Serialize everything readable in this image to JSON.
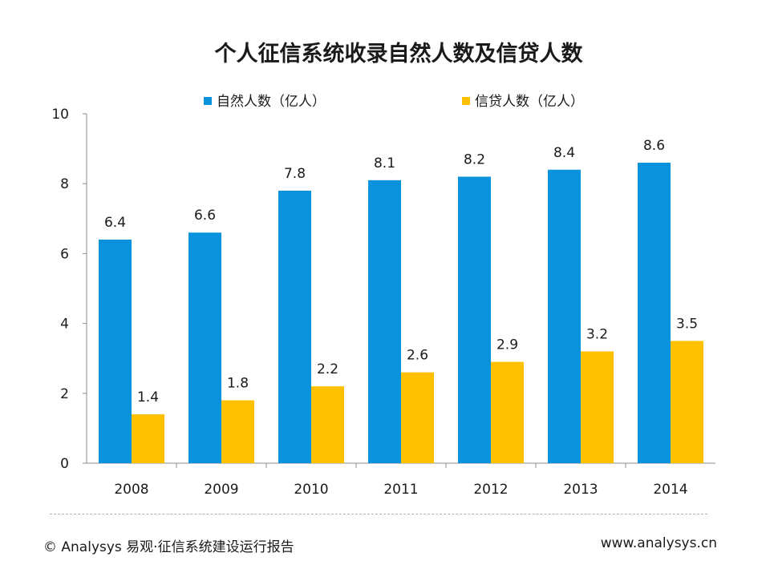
{
  "colors": {
    "series1": "#0a93dc",
    "series2": "#ffc000"
  },
  "chart_data": {
    "type": "bar",
    "title": "个人征信系统收录自然人数及信贷人数",
    "categories": [
      "2008",
      "2009",
      "2010",
      "2011",
      "2012",
      "2013",
      "2014"
    ],
    "series": [
      {
        "name": "自然人数（亿人）",
        "values": [
          6.4,
          6.6,
          7.8,
          8.1,
          8.2,
          8.4,
          8.6
        ],
        "labels": [
          "6.4",
          "6.6",
          "7.8",
          "8.1",
          "8.2",
          "8.4",
          "8.6"
        ]
      },
      {
        "name": "信贷人数（亿人）",
        "values": [
          1.4,
          1.8,
          2.2,
          2.6,
          2.9,
          3.2,
          3.5
        ],
        "labels": [
          "1.4",
          "1.8",
          "2.2",
          "2.6",
          "2.9",
          "3.2",
          "3.5"
        ]
      }
    ],
    "ylim": [
      0,
      10
    ],
    "yticks": [
      "0",
      "2",
      "4",
      "6",
      "8",
      "10"
    ],
    "ytick_values": [
      0,
      2,
      4,
      6,
      8,
      10
    ],
    "xlabel": "",
    "ylabel": "",
    "legend": "top"
  },
  "footer": {
    "source": "© Analysys 易观·征信系统建设运行报告",
    "website": "www.analysys.cn"
  }
}
